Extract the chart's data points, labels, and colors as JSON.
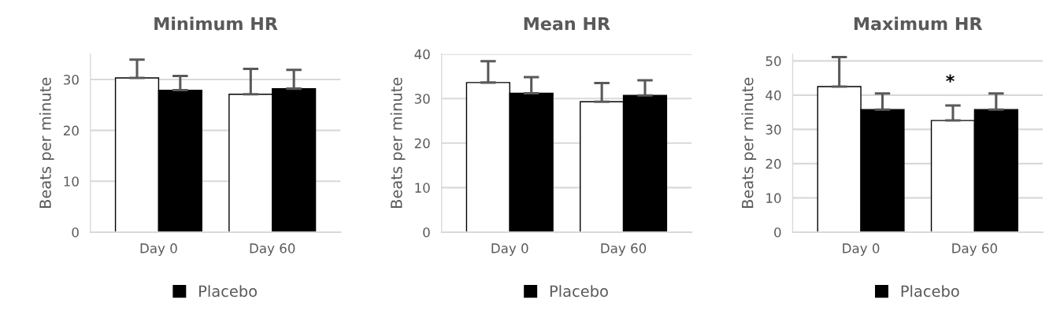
{
  "chart_data": [
    {
      "type": "bar",
      "title": "Minimum HR",
      "ylabel": "Beats per minute",
      "categories": [
        "Day 0",
        "Day 60"
      ],
      "ylim": [
        0,
        35
      ],
      "yticks": [
        0,
        10,
        20,
        30
      ],
      "grid": "y",
      "legend": "bottom",
      "series": [
        {
          "color": "#ffffff",
          "values": [
            30.3,
            27.1
          ],
          "errors": [
            [
              30.3,
              33.9
            ],
            [
              27.1,
              32.1
            ]
          ]
        },
        {
          "name": "Placebo",
          "color": "#000000",
          "values": [
            27.9,
            28.2
          ],
          "errors": [
            [
              27.9,
              30.7
            ],
            [
              28.2,
              31.9
            ]
          ]
        }
      ]
    },
    {
      "type": "bar",
      "title": "Mean HR",
      "ylabel": "Beats per minute",
      "categories": [
        "Day 0",
        "Day 60"
      ],
      "ylim": [
        0,
        40
      ],
      "yticks": [
        0,
        10,
        20,
        30,
        40
      ],
      "grid": "y",
      "legend": "bottom",
      "series": [
        {
          "color": "#ffffff",
          "values": [
            33.6,
            29.3
          ],
          "errors": [
            [
              33.6,
              38.4
            ],
            [
              29.3,
              33.5
            ]
          ]
        },
        {
          "name": "Placebo",
          "color": "#000000",
          "values": [
            31.2,
            30.7
          ],
          "errors": [
            [
              31.2,
              34.8
            ],
            [
              30.7,
              34.1
            ]
          ]
        }
      ]
    },
    {
      "type": "bar",
      "title": "Maximum HR",
      "ylabel": "Beats per minute",
      "categories": [
        "Day 0",
        "Day 60"
      ],
      "ylim": [
        0,
        52
      ],
      "yticks": [
        0,
        10,
        20,
        30,
        40,
        50
      ],
      "grid": "y",
      "legend": "bottom",
      "annotations": [
        "*"
      ],
      "series": [
        {
          "color": "#ffffff",
          "values": [
            42.5,
            32.6
          ],
          "errors": [
            [
              42.5,
              51.1
            ],
            [
              32.6,
              37.0
            ]
          ]
        },
        {
          "name": "Placebo",
          "color": "#000000",
          "values": [
            35.8,
            35.8
          ],
          "errors": [
            [
              35.8,
              40.5
            ],
            [
              35.8,
              40.5
            ]
          ]
        }
      ]
    }
  ]
}
